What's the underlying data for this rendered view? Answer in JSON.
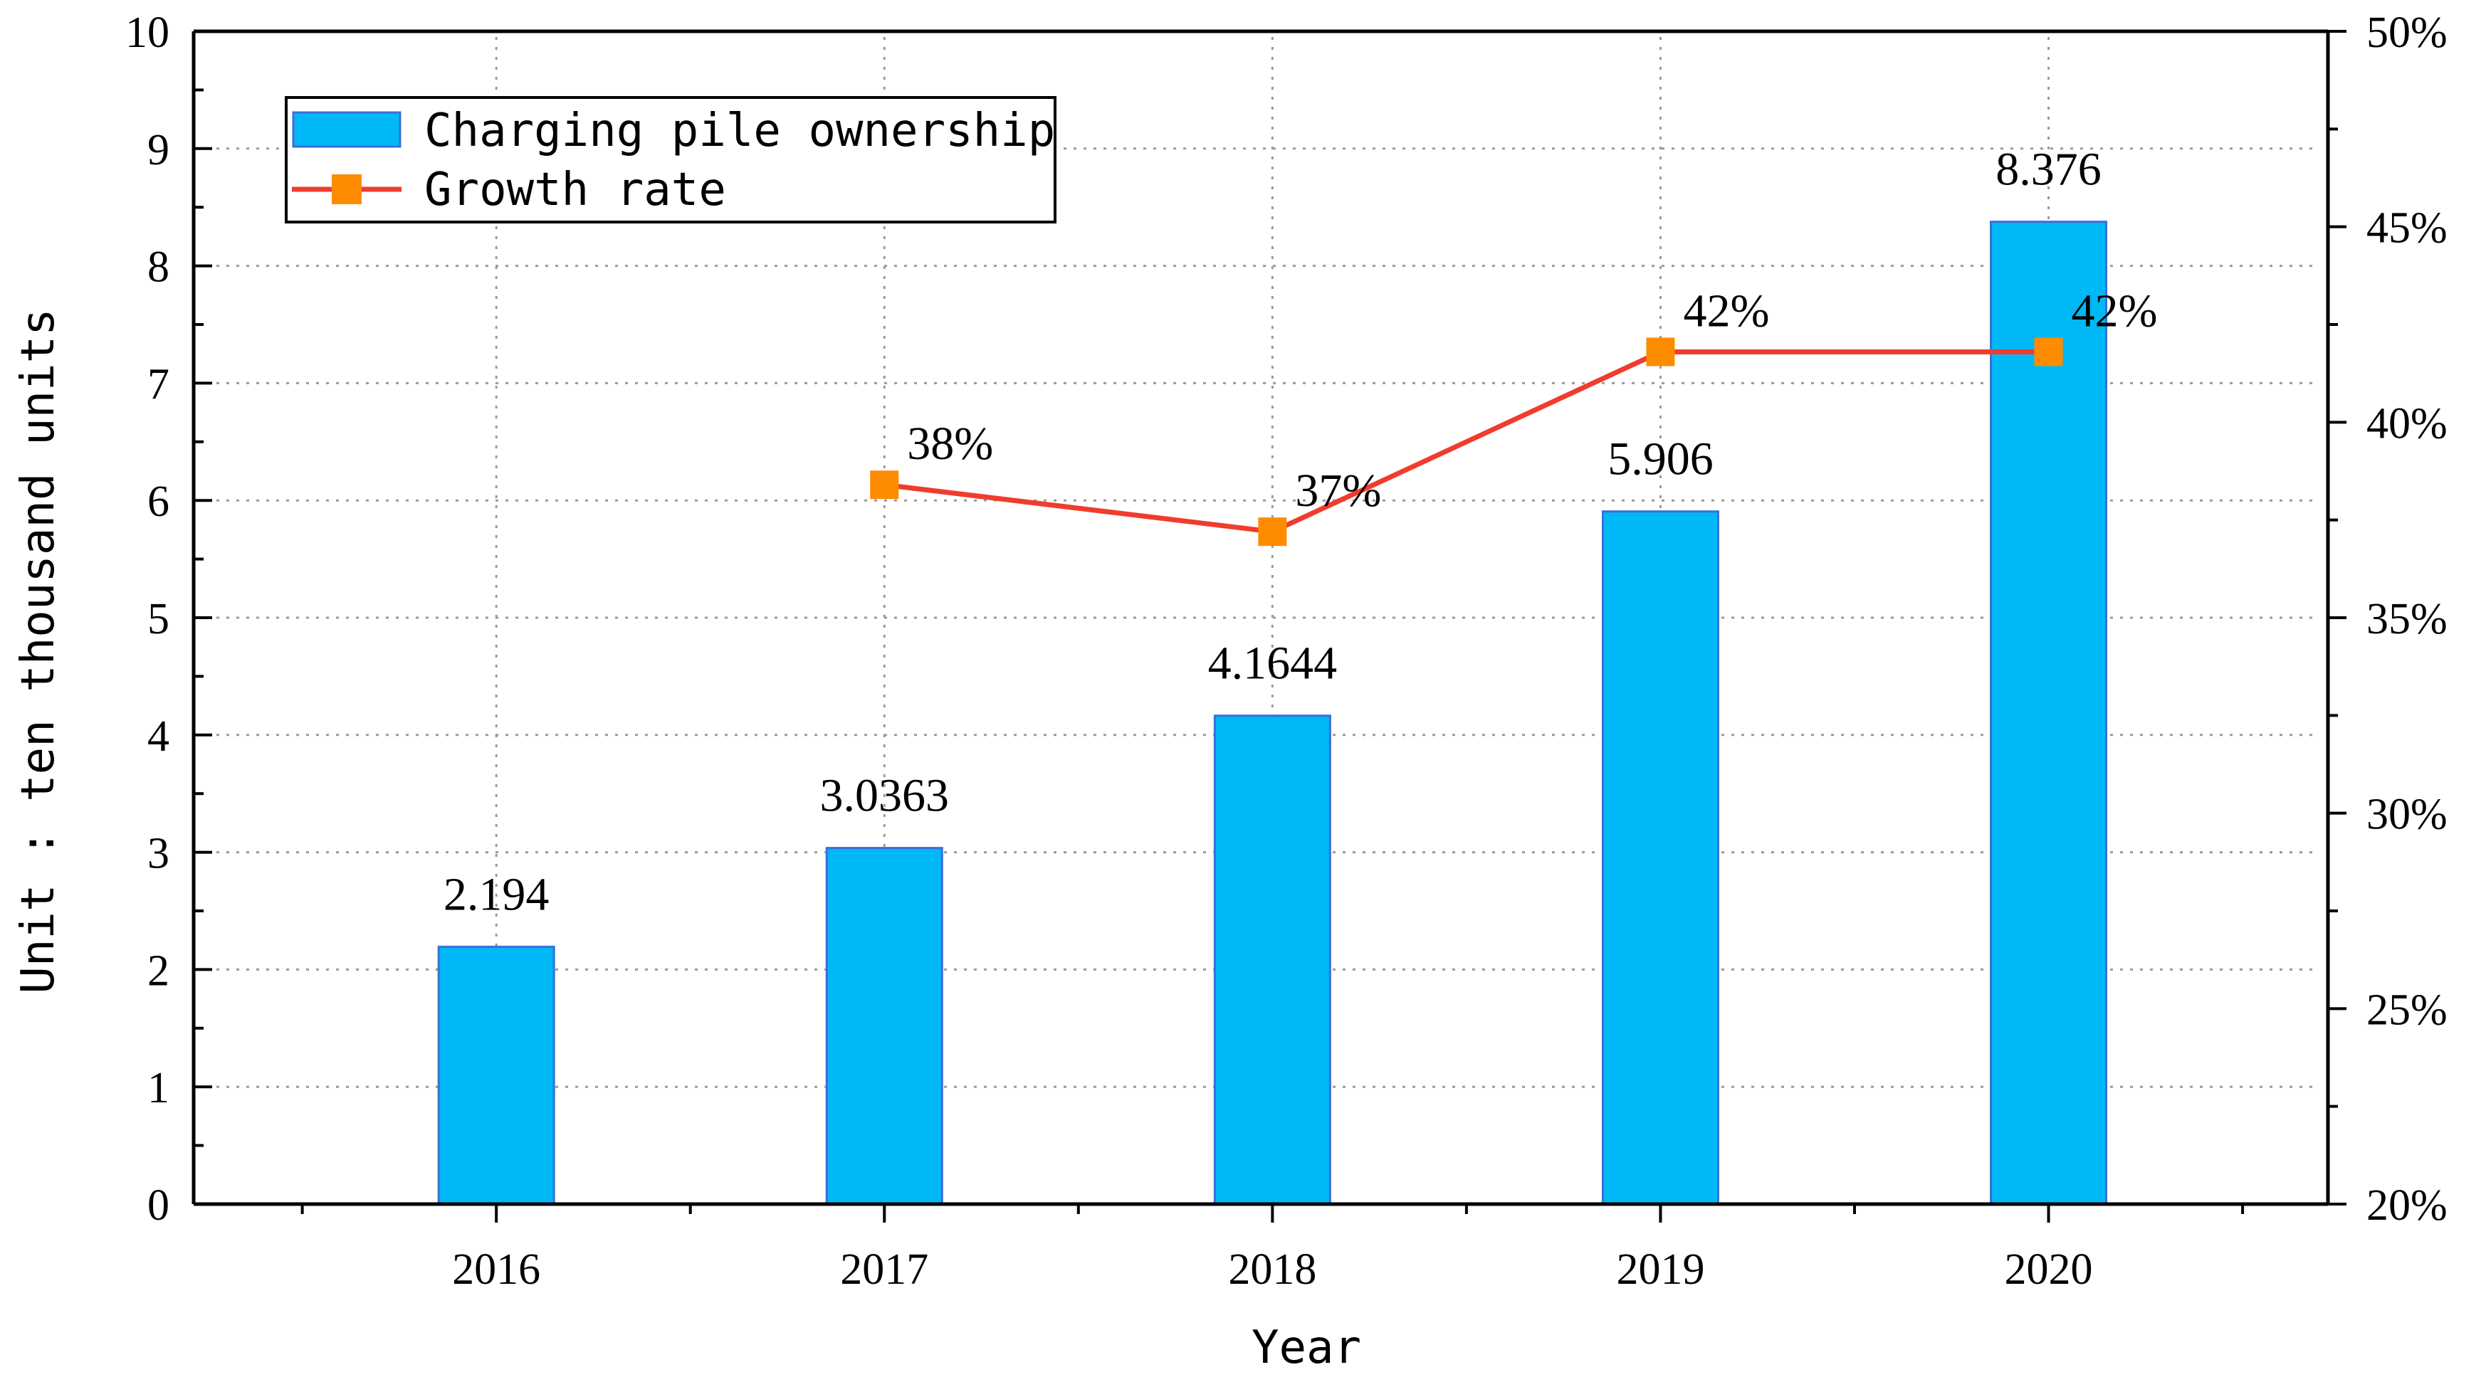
{
  "chart_data": {
    "type": "bar+line",
    "categories": [
      "2016",
      "2017",
      "2018",
      "2019",
      "2020"
    ],
    "series": [
      {
        "name": "Charging pile ownership",
        "kind": "bar",
        "axis": "left",
        "values": [
          2.194,
          3.0363,
          4.1644,
          5.906,
          8.376
        ],
        "labels": [
          "2.194",
          "3.0363",
          "4.1644",
          "5.906",
          "8.376"
        ],
        "color": "#00B8F5"
      },
      {
        "name": "Growth rate",
        "kind": "line",
        "axis": "right",
        "x": [
          "2017",
          "2018",
          "2019",
          "2020"
        ],
        "values": [
          38.4,
          37.2,
          41.8,
          41.8
        ],
        "labels": [
          "38%",
          "37%",
          "42%",
          "42%"
        ],
        "color": "#F03C2E",
        "marker_color": "#FF8C00"
      }
    ],
    "xlabel": "Year",
    "ylabel": "Unit : ten thousand units",
    "ylim_left": [
      0,
      10
    ],
    "yticks_left": [
      "0",
      "1",
      "2",
      "3",
      "4",
      "5",
      "6",
      "7",
      "8",
      "9",
      "10"
    ],
    "ylim_right": [
      20,
      50
    ],
    "yticks_right": [
      "20%",
      "25%",
      "30%",
      "35%",
      "40%",
      "45%",
      "50%"
    ],
    "grid": true,
    "legend_position": "top-left"
  }
}
